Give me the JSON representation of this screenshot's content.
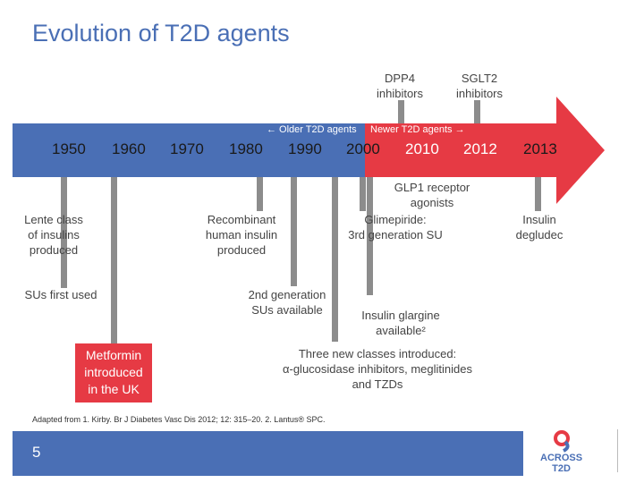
{
  "title": "Evolution of T2D agents",
  "colors": {
    "accent_blue": "#4a6fb5",
    "accent_red": "#e63a44",
    "connector_grey": "#8c8c8c"
  },
  "timeline": {
    "older_label": "← Older T2D agents",
    "newer_label": "Newer T2D agents →",
    "years": [
      "1950",
      "1960",
      "1970",
      "1980",
      "1990",
      "2000",
      "2010",
      "2012",
      "2013"
    ]
  },
  "events": {
    "dpp4": "DPP4\ninhibitors",
    "sglt2": "SGLT2\ninhibitors",
    "lente": "Lente class\nof insulins\nproduced",
    "sus_first": "SUs first used",
    "metformin": "Metformin\nintroduced\nin the UK",
    "recombinant": "Recombinant\nhuman insulin\nproduced",
    "second_gen": "2nd generation\nSUs available",
    "glp1": "GLP1 receptor\nagonists",
    "glimepiride": "Glimepiride:\n3rd generation SU",
    "glargine": "Insulin glargine\navailable²",
    "three_classes": "Three new classes introduced:\nα-glucosidase inhibitors, meglitinides\nand TZDs",
    "degludec": "Insulin\ndegludec"
  },
  "footnote": "Adapted from 1. Kirby. Br J Diabetes Vasc Dis 2012; 12: 315–20. 2. Lantus® SPC.",
  "page_number": "5",
  "logo": {
    "text_line1": "ACROSS",
    "text_line2": "T2D",
    "icon": "across-t2d-logo-icon"
  }
}
